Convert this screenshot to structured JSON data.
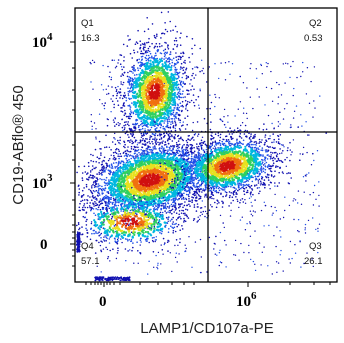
{
  "chart_data": {
    "type": "scatter",
    "subtype": "flow-cytometry-density-quadrant-plot",
    "title": "",
    "xlabel": "LAMP1/CD107a-PE",
    "ylabel": "CD19-ABflo® 450",
    "x_scale": "biexponential",
    "y_scale": "biexponential",
    "x_ticks": [
      {
        "base": "0",
        "exp": ""
      },
      {
        "base": "10",
        "exp": "6"
      }
    ],
    "y_ticks": [
      {
        "base": "10",
        "exp": "4"
      },
      {
        "base": "10",
        "exp": "3"
      },
      {
        "base": "0",
        "exp": ""
      }
    ],
    "quadrants": [
      {
        "id": "Q1",
        "label": "Q1",
        "percent": "16.3",
        "position": "top-left"
      },
      {
        "id": "Q2",
        "label": "Q2",
        "percent": "0.53",
        "position": "top-right"
      },
      {
        "id": "Q3",
        "label": "Q3",
        "percent": "26.1",
        "position": "bottom-right"
      },
      {
        "id": "Q4",
        "label": "Q4",
        "percent": "57.1",
        "position": "bottom-left"
      }
    ],
    "color_scale": [
      "#1010b0",
      "#2050e8",
      "#00b8e0",
      "#30d060",
      "#e8e020",
      "#f07010",
      "#d01010"
    ],
    "grid": false,
    "legend": "none"
  }
}
